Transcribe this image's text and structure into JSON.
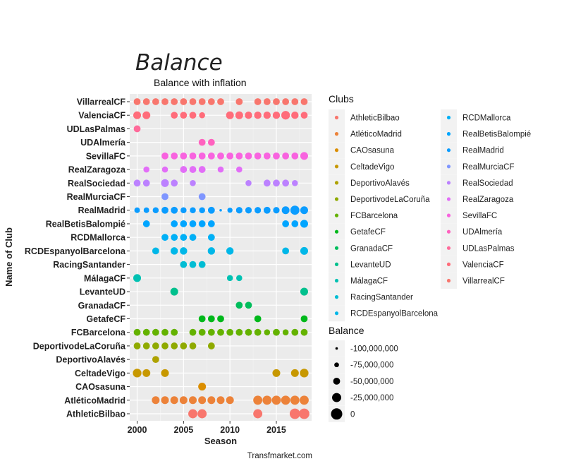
{
  "chart_data": {
    "type": "scatter",
    "title": "Balance",
    "subtitle": "Balance with inflation",
    "xlabel": "Season",
    "ylabel": "Name of Club",
    "caption": "Transfmarket.com",
    "xlim": [
      1999.2,
      2018.8
    ],
    "x_ticks": [
      2000,
      2005,
      2010,
      2015
    ],
    "grid": true,
    "legend_position": "right",
    "clubs": [
      "AthleticBilbao",
      "AtléticoMadrid",
      "CAOsasuna",
      "CeltadeVigo",
      "DeportivoAlavés",
      "DeportivodeLaCoruña",
      "FCBarcelona",
      "GetafeCF",
      "GranadaCF",
      "LevanteUD",
      "MálagaCF",
      "RacingSantander",
      "RCDEspanyolBarcelona",
      "RCDMallorca",
      "RealBetisBalompié",
      "RealMadrid",
      "RealMurciaCF",
      "RealSociedad",
      "RealZaragoza",
      "SevillaFC",
      "UDAlmería",
      "UDLasPalmas",
      "ValenciaCF",
      "VillarrealCF"
    ],
    "colors": [
      "#F8766D",
      "#EC8239",
      "#DB8E00",
      "#C79800",
      "#AEA200",
      "#8FAA00",
      "#64B200",
      "#00B81B",
      "#00BD5C",
      "#00C08D",
      "#00C1B2",
      "#00BDD4",
      "#00B7E8",
      "#00B0F6",
      "#00A5FF",
      "#0A9CFF",
      "#7F96FF",
      "#BC81FF",
      "#E26EF7",
      "#F863DF",
      "#FF62BF",
      "#FF6A9A",
      "#FF6C7A",
      "#F8766D"
    ],
    "legend_title_clubs": "Clubs",
    "legend_title_balance": "Balance",
    "balance_legend": [
      {
        "label": "-100,000,000",
        "value": -100000000
      },
      {
        "label": "-75,000,000",
        "value": -75000000
      },
      {
        "label": "-50,000,000",
        "value": -50000000
      },
      {
        "label": "-25,000,000",
        "value": -25000000
      },
      {
        "label": "0",
        "value": 0
      }
    ],
    "points": {
      "AthleticBilbao": [
        [
          2006,
          -25000000
        ],
        [
          2007,
          -25000000
        ],
        [
          2013,
          -25000000
        ],
        [
          2017,
          -10000000
        ],
        [
          2018,
          -10000000
        ]
      ],
      "AtléticoMadrid": [
        [
          2002,
          -40000000
        ],
        [
          2003,
          -40000000
        ],
        [
          2004,
          -40000000
        ],
        [
          2005,
          -40000000
        ],
        [
          2006,
          -40000000
        ],
        [
          2007,
          -40000000
        ],
        [
          2008,
          -40000000
        ],
        [
          2009,
          -40000000
        ],
        [
          2010,
          -40000000
        ],
        [
          2013,
          -25000000
        ],
        [
          2014,
          -25000000
        ],
        [
          2015,
          -25000000
        ],
        [
          2016,
          -25000000
        ],
        [
          2017,
          -25000000
        ],
        [
          2018,
          -25000000
        ]
      ],
      "CAOsasuna": [
        [
          2007,
          -40000000
        ]
      ],
      "CeltadeVigo": [
        [
          2000,
          -30000000
        ],
        [
          2001,
          -40000000
        ],
        [
          2003,
          -40000000
        ],
        [
          2015,
          -40000000
        ],
        [
          2017,
          -40000000
        ],
        [
          2018,
          -30000000
        ]
      ],
      "DeportivoAlavés": [
        [
          2002,
          -50000000
        ]
      ],
      "DeportivodeLaCoruña": [
        [
          2000,
          -50000000
        ],
        [
          2001,
          -50000000
        ],
        [
          2002,
          -50000000
        ],
        [
          2003,
          -50000000
        ],
        [
          2004,
          -50000000
        ],
        [
          2005,
          -50000000
        ],
        [
          2006,
          -50000000
        ],
        [
          2008,
          -50000000
        ]
      ],
      "FCBarcelona": [
        [
          2000,
          -50000000
        ],
        [
          2001,
          -50000000
        ],
        [
          2002,
          -50000000
        ],
        [
          2003,
          -50000000
        ],
        [
          2004,
          -50000000
        ],
        [
          2006,
          -50000000
        ],
        [
          2007,
          -50000000
        ],
        [
          2008,
          -50000000
        ],
        [
          2009,
          -50000000
        ],
        [
          2010,
          -50000000
        ],
        [
          2011,
          -50000000
        ],
        [
          2012,
          -50000000
        ],
        [
          2013,
          -50000000
        ],
        [
          2014,
          -60000000
        ],
        [
          2015,
          -50000000
        ],
        [
          2016,
          -60000000
        ],
        [
          2017,
          -50000000
        ],
        [
          2018,
          -50000000
        ]
      ],
      "GetafeCF": [
        [
          2007,
          -50000000
        ],
        [
          2008,
          -50000000
        ],
        [
          2009,
          -50000000
        ],
        [
          2013,
          -50000000
        ],
        [
          2018,
          -50000000
        ]
      ],
      "GranadaCF": [
        [
          2011,
          -50000000
        ],
        [
          2012,
          -50000000
        ]
      ],
      "LevanteUD": [
        [
          2004,
          -40000000
        ],
        [
          2018,
          -40000000
        ]
      ],
      "MálagaCF": [
        [
          2000,
          -40000000
        ],
        [
          2010,
          -60000000
        ],
        [
          2011,
          -60000000
        ]
      ],
      "RacingSantander": [
        [
          2005,
          -50000000
        ],
        [
          2006,
          -50000000
        ],
        [
          2007,
          -50000000
        ]
      ],
      "RCDEspanyolBarcelona": [
        [
          2002,
          -50000000
        ],
        [
          2004,
          -45000000
        ],
        [
          2005,
          -45000000
        ],
        [
          2008,
          -45000000
        ],
        [
          2010,
          -45000000
        ],
        [
          2016,
          -50000000
        ],
        [
          2018,
          -40000000
        ]
      ],
      "RCDMallorca": [
        [
          2003,
          -50000000
        ],
        [
          2004,
          -50000000
        ],
        [
          2005,
          -50000000
        ],
        [
          2006,
          -50000000
        ],
        [
          2008,
          -50000000
        ]
      ],
      "RealBetisBalompié": [
        [
          2001,
          -50000000
        ],
        [
          2004,
          -50000000
        ],
        [
          2005,
          -50000000
        ],
        [
          2006,
          -50000000
        ],
        [
          2007,
          -50000000
        ],
        [
          2008,
          -50000000
        ],
        [
          2016,
          -50000000
        ],
        [
          2017,
          -50000000
        ],
        [
          2018,
          -40000000
        ]
      ],
      "RealMadrid": [
        [
          2000,
          -65000000
        ],
        [
          2001,
          -65000000
        ],
        [
          2002,
          -60000000
        ],
        [
          2003,
          -50000000
        ],
        [
          2004,
          -50000000
        ],
        [
          2005,
          -60000000
        ],
        [
          2006,
          -60000000
        ],
        [
          2007,
          -60000000
        ],
        [
          2008,
          -50000000
        ],
        [
          2009,
          -100000000
        ],
        [
          2010,
          -70000000
        ],
        [
          2011,
          -55000000
        ],
        [
          2012,
          -55000000
        ],
        [
          2013,
          -55000000
        ],
        [
          2014,
          -50000000
        ],
        [
          2015,
          -55000000
        ],
        [
          2016,
          -40000000
        ],
        [
          2017,
          -25000000
        ],
        [
          2018,
          -40000000
        ]
      ],
      "RealMurciaCF": [
        [
          2003,
          -50000000
        ],
        [
          2007,
          -50000000
        ]
      ],
      "RealSociedad": [
        [
          2000,
          -50000000
        ],
        [
          2001,
          -50000000
        ],
        [
          2003,
          -40000000
        ],
        [
          2004,
          -50000000
        ],
        [
          2006,
          -60000000
        ],
        [
          2012,
          -60000000
        ],
        [
          2014,
          -50000000
        ],
        [
          2015,
          -50000000
        ],
        [
          2016,
          -50000000
        ],
        [
          2017,
          -60000000
        ]
      ],
      "RealZaragoza": [
        [
          2001,
          -60000000
        ],
        [
          2003,
          -60000000
        ],
        [
          2005,
          -50000000
        ],
        [
          2006,
          -50000000
        ],
        [
          2007,
          -50000000
        ],
        [
          2009,
          -60000000
        ],
        [
          2011,
          -60000000
        ]
      ],
      "SevillaFC": [
        [
          2003,
          -50000000
        ],
        [
          2004,
          -50000000
        ],
        [
          2005,
          -50000000
        ],
        [
          2006,
          -50000000
        ],
        [
          2007,
          -50000000
        ],
        [
          2008,
          -50000000
        ],
        [
          2009,
          -50000000
        ],
        [
          2010,
          -50000000
        ],
        [
          2011,
          -50000000
        ],
        [
          2012,
          -50000000
        ],
        [
          2013,
          -50000000
        ],
        [
          2014,
          -50000000
        ],
        [
          2015,
          -50000000
        ],
        [
          2016,
          -50000000
        ],
        [
          2017,
          -50000000
        ],
        [
          2018,
          -40000000
        ]
      ],
      "UDAlmería": [
        [
          2007,
          -50000000
        ],
        [
          2008,
          -50000000
        ]
      ],
      "UDLasPalmas": [
        [
          2000,
          -50000000
        ]
      ],
      "ValenciaCF": [
        [
          2000,
          -40000000
        ],
        [
          2001,
          -40000000
        ],
        [
          2004,
          -50000000
        ],
        [
          2005,
          -50000000
        ],
        [
          2006,
          -50000000
        ],
        [
          2007,
          -60000000
        ],
        [
          2010,
          -40000000
        ],
        [
          2011,
          -40000000
        ],
        [
          2012,
          -45000000
        ],
        [
          2013,
          -45000000
        ],
        [
          2014,
          -45000000
        ],
        [
          2015,
          -45000000
        ],
        [
          2016,
          -30000000
        ],
        [
          2017,
          -45000000
        ],
        [
          2018,
          -50000000
        ]
      ],
      "VillarrealCF": [
        [
          2000,
          -50000000
        ],
        [
          2001,
          -50000000
        ],
        [
          2002,
          -50000000
        ],
        [
          2003,
          -50000000
        ],
        [
          2004,
          -50000000
        ],
        [
          2005,
          -50000000
        ],
        [
          2006,
          -50000000
        ],
        [
          2007,
          -50000000
        ],
        [
          2008,
          -50000000
        ],
        [
          2009,
          -50000000
        ],
        [
          2011,
          -50000000
        ],
        [
          2013,
          -50000000
        ],
        [
          2014,
          -50000000
        ],
        [
          2015,
          -50000000
        ],
        [
          2016,
          -50000000
        ],
        [
          2017,
          -50000000
        ],
        [
          2018,
          -50000000
        ]
      ]
    }
  }
}
